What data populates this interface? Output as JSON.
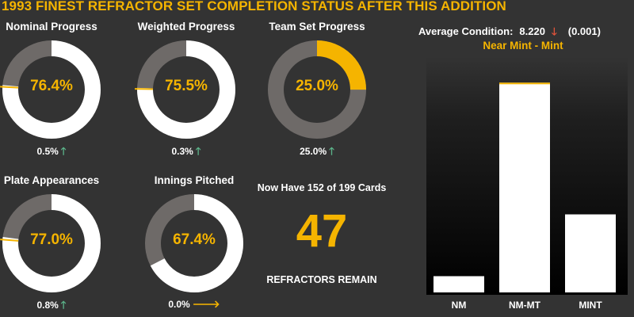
{
  "title": "1993 FINEST REFRACTOR SET COMPLETION STATUS AFTER THIS ADDITION",
  "colors": {
    "accent": "#f5b400",
    "ring_bg": "#6e6a68",
    "ring_fill": "#ffffff",
    "up_arrow": "#5bb389",
    "down_arrow": "#e0533a",
    "flat_arrow": "#f5b400"
  },
  "donuts": [
    {
      "label": "Nominal Progress",
      "percent_text": "76.4%",
      "fraction": 0.764,
      "fill_color": "#ffffff",
      "delta_text": "0.5%",
      "delta_icon": "up-arrow-icon",
      "delta_glyph": "🡑",
      "marker_fraction": 0.759
    },
    {
      "label": "Weighted Progress",
      "percent_text": "75.5%",
      "fraction": 0.755,
      "fill_color": "#ffffff",
      "delta_text": "0.3%",
      "delta_icon": "up-arrow-icon",
      "delta_glyph": "🡑",
      "marker_fraction": 0.752
    },
    {
      "label": "Team Set Progress",
      "percent_text": "25.0%",
      "fraction": 0.25,
      "fill_color": "#f5b400",
      "delta_text": "25.0%",
      "delta_icon": "up-arrow-icon",
      "delta_glyph": "🡑",
      "marker_fraction": null
    },
    {
      "label": "Plate Appearances",
      "percent_text": "77.0%",
      "fraction": 0.77,
      "fill_color": "#ffffff",
      "delta_text": "0.8%",
      "delta_icon": "up-arrow-icon",
      "delta_glyph": "🡑",
      "marker_fraction": 0.762
    },
    {
      "label": "Innings Pitched",
      "percent_text": "67.4%",
      "fraction": 0.674,
      "fill_color": "#ffffff",
      "delta_text": "0.0%",
      "delta_icon": "right-arrow-icon",
      "delta_glyph": "🡒",
      "marker_fraction": null
    }
  ],
  "cards": {
    "now_have": "Now Have 152 of 199 Cards",
    "remaining": "47",
    "remaining_label": "REFRACTORS REMAIN"
  },
  "condition": {
    "label": "Average Condition:",
    "value": "8.220",
    "arrow_icon": "down-arrow-icon",
    "arrow_glyph": "🡓",
    "change": "(0.001)",
    "grade": "Near Mint - Mint"
  },
  "chart_data": {
    "type": "bar",
    "categories": [
      "NM",
      "NM-MT",
      "MINT"
    ],
    "values": [
      10,
      129,
      48
    ],
    "ylim": [
      0,
      135
    ],
    "grid": false
  }
}
